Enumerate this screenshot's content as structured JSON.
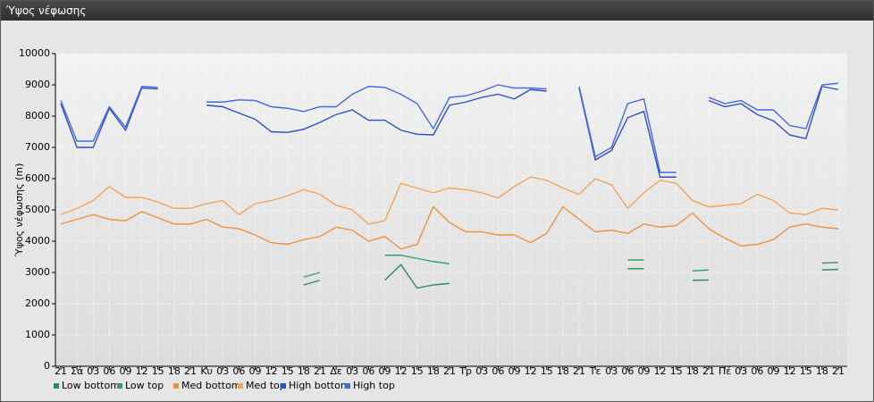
{
  "window_title": "Ύψος νέφωσης",
  "chart_data": {
    "type": "line",
    "ylabel": "Ύψος νέφωσης (m)",
    "categories": [
      "21",
      "Σά",
      "03",
      "06",
      "09",
      "12",
      "15",
      "18",
      "21",
      "Κυ",
      "03",
      "06",
      "09",
      "12",
      "15",
      "18",
      "21",
      "Δε",
      "03",
      "06",
      "09",
      "12",
      "15",
      "18",
      "21",
      "Τρ",
      "03",
      "06",
      "09",
      "12",
      "15",
      "18",
      "21",
      "Τε",
      "03",
      "06",
      "09",
      "12",
      "15",
      "18",
      "21",
      "Πέ",
      "03",
      "06",
      "09",
      "12",
      "15",
      "18",
      "21"
    ],
    "ylim": [
      0,
      10000
    ],
    "yticks": [
      0,
      1000,
      2000,
      3000,
      4000,
      5000,
      6000,
      7000,
      8000,
      9000,
      10000
    ],
    "grid": true,
    "legend": "bottom-left",
    "series": [
      {
        "name": "Low bottom",
        "color": "#2e8a58",
        "values": [
          null,
          null,
          null,
          null,
          null,
          null,
          null,
          null,
          null,
          null,
          null,
          null,
          null,
          null,
          null,
          2600,
          2750,
          null,
          null,
          null,
          2750,
          3250,
          2500,
          2600,
          2650,
          null,
          null,
          null,
          null,
          null,
          null,
          null,
          null,
          null,
          null,
          3120,
          3120,
          null,
          null,
          2750,
          2760,
          null,
          null,
          null,
          null,
          null,
          null,
          3080,
          3100
        ]
      },
      {
        "name": "Low top",
        "color": "#3a9c6c",
        "values": [
          null,
          null,
          null,
          null,
          null,
          null,
          null,
          null,
          null,
          null,
          null,
          null,
          null,
          null,
          null,
          2850,
          3000,
          null,
          null,
          null,
          3550,
          3550,
          3450,
          3350,
          3280,
          null,
          null,
          null,
          null,
          null,
          null,
          null,
          null,
          null,
          null,
          3400,
          3400,
          null,
          null,
          3050,
          3080,
          null,
          null,
          null,
          null,
          null,
          null,
          3300,
          3320
        ]
      },
      {
        "name": "Med bottom",
        "color": "#e8953f",
        "values": [
          4550,
          4700,
          4850,
          4700,
          4650,
          4950,
          4750,
          4550,
          4550,
          4700,
          4450,
          4400,
          4200,
          3950,
          3900,
          4050,
          4150,
          4450,
          4350,
          4000,
          4150,
          3750,
          3900,
          5100,
          4600,
          4300,
          4300,
          4200,
          4200,
          3950,
          4250,
          5100,
          4700,
          4300,
          4350,
          4250,
          4550,
          4450,
          4500,
          4900,
          4400,
          4100,
          3850,
          3900,
          4050,
          4450,
          4550,
          4450,
          4400
        ]
      },
      {
        "name": "Med top",
        "color": "#f0a55a",
        "values": [
          4850,
          5050,
          5300,
          5750,
          5400,
          5400,
          5250,
          5050,
          5050,
          5200,
          5300,
          4850,
          5200,
          5300,
          5450,
          5650,
          5500,
          5150,
          5000,
          4550,
          4650,
          5850,
          5700,
          5550,
          5700,
          5650,
          5550,
          5380,
          5750,
          6050,
          5950,
          5700,
          5500,
          6000,
          5800,
          5050,
          5550,
          5950,
          5850,
          5300,
          5100,
          5150,
          5200,
          5500,
          5300,
          4900,
          4850,
          5050,
          5000
        ]
      },
      {
        "name": "High bottom",
        "color": "#2f4fc4",
        "values": [
          8400,
          7000,
          7000,
          8250,
          7550,
          8900,
          8870,
          null,
          null,
          8350,
          8300,
          8100,
          7900,
          7500,
          7480,
          7580,
          7800,
          8050,
          8200,
          7870,
          7870,
          7550,
          7420,
          7400,
          8350,
          8450,
          8600,
          8700,
          8550,
          8850,
          8800,
          null,
          8900,
          6600,
          6900,
          7950,
          8150,
          6050,
          6050,
          null,
          8500,
          8300,
          8400,
          8050,
          7850,
          7400,
          7280,
          8950,
          8850
        ]
      },
      {
        "name": "High top",
        "color": "#4668e0",
        "values": [
          8500,
          7200,
          7200,
          8300,
          7650,
          8950,
          8920,
          null,
          null,
          8450,
          8450,
          8520,
          8500,
          8300,
          8250,
          8150,
          8300,
          8300,
          8700,
          8950,
          8920,
          8700,
          8400,
          7600,
          8600,
          8650,
          8800,
          9000,
          8900,
          8900,
          8870,
          null,
          8950,
          6700,
          7000,
          8400,
          8550,
          6200,
          6200,
          null,
          8600,
          8400,
          8500,
          8200,
          8200,
          7700,
          7600,
          9000,
          9050
        ]
      }
    ]
  }
}
